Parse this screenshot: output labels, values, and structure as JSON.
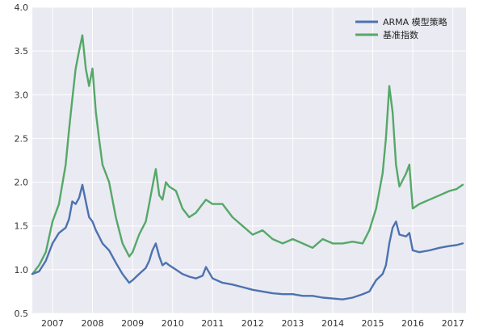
{
  "chart_data": {
    "type": "line",
    "ylim": [
      0.5,
      4.0
    ],
    "xlim": [
      "2006-07-01",
      "2017-05-01"
    ],
    "y_ticks": [
      "0.5",
      "1.0",
      "1.5",
      "2.0",
      "2.5",
      "3.0",
      "3.5",
      "4.0"
    ],
    "x_ticks": [
      "2007",
      "2008",
      "2009",
      "2010",
      "2011",
      "2012",
      "2013",
      "2014",
      "2015",
      "2016",
      "2017"
    ],
    "grid": true,
    "plot_background": "#eaeaf2",
    "legend_position": "top-right",
    "series": [
      {
        "name": "ARMA 模型策略",
        "color": "#4c72b0",
        "x": [
          "2006-07-01",
          "2006-09-01",
          "2006-11-01",
          "2007-01-01",
          "2007-03-01",
          "2007-05-01",
          "2007-06-01",
          "2007-07-01",
          "2007-08-01",
          "2007-09-01",
          "2007-10-01",
          "2007-11-01",
          "2007-12-01",
          "2008-01-01",
          "2008-02-01",
          "2008-03-01",
          "2008-04-01",
          "2008-06-01",
          "2008-08-01",
          "2008-10-01",
          "2008-12-01",
          "2009-01-01",
          "2009-03-01",
          "2009-05-01",
          "2009-06-01",
          "2009-07-01",
          "2009-08-01",
          "2009-09-01",
          "2009-10-01",
          "2009-11-01",
          "2009-12-01",
          "2010-02-01",
          "2010-04-01",
          "2010-06-01",
          "2010-08-01",
          "2010-10-01",
          "2010-11-01",
          "2011-01-01",
          "2011-04-01",
          "2011-07-01",
          "2011-10-01",
          "2012-01-01",
          "2012-04-01",
          "2012-07-01",
          "2012-10-01",
          "2013-01-01",
          "2013-04-01",
          "2013-07-01",
          "2013-10-01",
          "2014-01-01",
          "2014-04-01",
          "2014-07-01",
          "2014-10-01",
          "2014-12-01",
          "2015-02-01",
          "2015-04-01",
          "2015-05-01",
          "2015-06-01",
          "2015-07-01",
          "2015-08-01",
          "2015-09-01",
          "2015-11-01",
          "2015-12-01",
          "2016-01-01",
          "2016-03-01",
          "2016-06-01",
          "2016-09-01",
          "2016-12-01",
          "2017-02-01",
          "2017-04-01"
        ],
        "values": [
          0.95,
          0.98,
          1.1,
          1.3,
          1.42,
          1.48,
          1.58,
          1.78,
          1.75,
          1.82,
          1.97,
          1.78,
          1.6,
          1.55,
          1.45,
          1.38,
          1.3,
          1.22,
          1.08,
          0.95,
          0.85,
          0.88,
          0.95,
          1.02,
          1.1,
          1.22,
          1.3,
          1.15,
          1.05,
          1.08,
          1.05,
          1.0,
          0.95,
          0.92,
          0.9,
          0.93,
          1.03,
          0.9,
          0.85,
          0.83,
          0.8,
          0.77,
          0.75,
          0.73,
          0.72,
          0.72,
          0.7,
          0.7,
          0.68,
          0.67,
          0.66,
          0.68,
          0.72,
          0.75,
          0.88,
          0.95,
          1.05,
          1.3,
          1.48,
          1.55,
          1.4,
          1.38,
          1.42,
          1.22,
          1.2,
          1.22,
          1.25,
          1.27,
          1.28,
          1.3
        ]
      },
      {
        "name": "基准指数",
        "color": "#55a868",
        "x": [
          "2006-07-01",
          "2006-09-01",
          "2006-11-01",
          "2007-01-01",
          "2007-03-01",
          "2007-05-01",
          "2007-06-01",
          "2007-07-01",
          "2007-08-01",
          "2007-09-01",
          "2007-10-01",
          "2007-11-01",
          "2007-12-01",
          "2008-01-01",
          "2008-02-01",
          "2008-03-01",
          "2008-04-01",
          "2008-06-01",
          "2008-08-01",
          "2008-10-01",
          "2008-12-01",
          "2009-01-01",
          "2009-03-01",
          "2009-05-01",
          "2009-06-01",
          "2009-07-01",
          "2009-08-01",
          "2009-09-01",
          "2009-10-01",
          "2009-11-01",
          "2009-12-01",
          "2010-02-01",
          "2010-04-01",
          "2010-06-01",
          "2010-08-01",
          "2010-10-01",
          "2010-11-01",
          "2011-01-01",
          "2011-04-01",
          "2011-07-01",
          "2011-10-01",
          "2012-01-01",
          "2012-04-01",
          "2012-07-01",
          "2012-10-01",
          "2013-01-01",
          "2013-04-01",
          "2013-07-01",
          "2013-10-01",
          "2014-01-01",
          "2014-04-01",
          "2014-07-01",
          "2014-10-01",
          "2014-12-01",
          "2015-02-01",
          "2015-04-01",
          "2015-05-01",
          "2015-06-01",
          "2015-07-01",
          "2015-08-01",
          "2015-09-01",
          "2015-11-01",
          "2015-12-01",
          "2016-01-01",
          "2016-03-01",
          "2016-06-01",
          "2016-09-01",
          "2016-12-01",
          "2017-02-01",
          "2017-04-01"
        ],
        "values": [
          0.95,
          1.05,
          1.2,
          1.55,
          1.75,
          2.2,
          2.6,
          2.95,
          3.3,
          3.5,
          3.68,
          3.3,
          3.1,
          3.3,
          2.8,
          2.5,
          2.2,
          2.0,
          1.6,
          1.3,
          1.15,
          1.2,
          1.4,
          1.55,
          1.75,
          1.95,
          2.15,
          1.85,
          1.8,
          2.0,
          1.95,
          1.9,
          1.7,
          1.6,
          1.65,
          1.75,
          1.8,
          1.75,
          1.75,
          1.6,
          1.5,
          1.4,
          1.45,
          1.35,
          1.3,
          1.35,
          1.3,
          1.25,
          1.35,
          1.3,
          1.3,
          1.32,
          1.3,
          1.45,
          1.7,
          2.1,
          2.5,
          3.1,
          2.8,
          2.2,
          1.95,
          2.1,
          2.2,
          1.7,
          1.75,
          1.8,
          1.85,
          1.9,
          1.92,
          1.97
        ]
      }
    ]
  }
}
